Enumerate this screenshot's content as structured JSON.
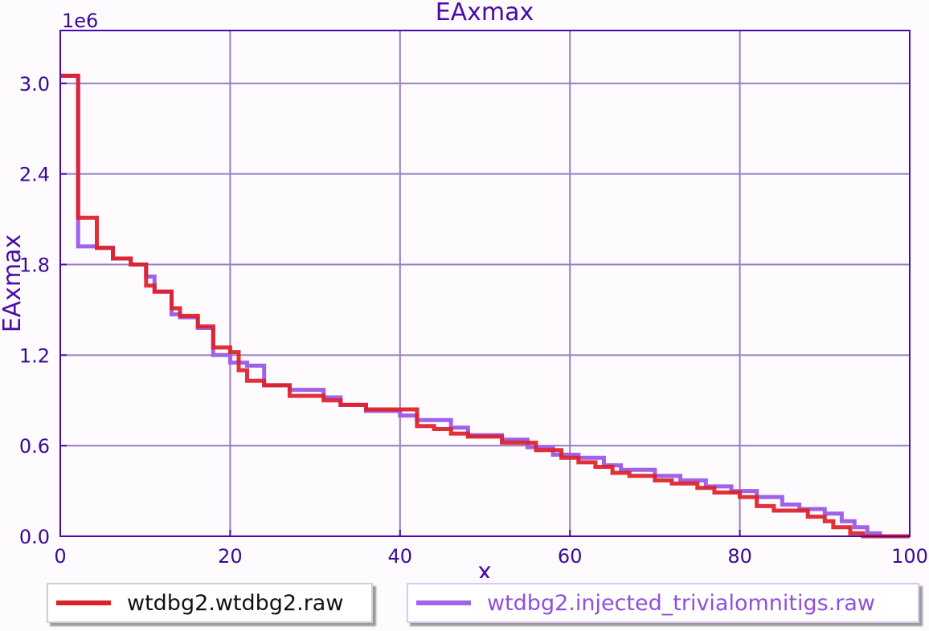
{
  "chart_data": {
    "type": "line",
    "title": "EAxmax",
    "xlabel": "x",
    "ylabel": "EAxmax",
    "y_offset_label": "1e6",
    "xlim": [
      0,
      100
    ],
    "ylim": [
      0,
      3.35
    ],
    "x_ticks": [
      "0",
      "20",
      "40",
      "60",
      "80",
      "100"
    ],
    "y_ticks": [
      "0.0",
      "0.6",
      "1.2",
      "1.8",
      "2.4",
      "3.0"
    ],
    "grid": true,
    "legend_position": "bottom",
    "series": [
      {
        "name": "wtdbg2.wtdbg2.raw",
        "color": "#dd2027",
        "step_points": [
          [
            0,
            3.05
          ],
          [
            2.1,
            3.05
          ],
          [
            2.1,
            2.11
          ],
          [
            4.3,
            2.11
          ],
          [
            4.3,
            1.91
          ],
          [
            6.2,
            1.91
          ],
          [
            6.2,
            1.84
          ],
          [
            8.3,
            1.84
          ],
          [
            8.3,
            1.8
          ],
          [
            10.1,
            1.8
          ],
          [
            10.1,
            1.66
          ],
          [
            11.1,
            1.66
          ],
          [
            11.1,
            1.62
          ],
          [
            13.1,
            1.62
          ],
          [
            13.1,
            1.51
          ],
          [
            14.1,
            1.51
          ],
          [
            14.1,
            1.46
          ],
          [
            16.2,
            1.46
          ],
          [
            16.2,
            1.39
          ],
          [
            18.0,
            1.39
          ],
          [
            18.0,
            1.25
          ],
          [
            20.0,
            1.25
          ],
          [
            20.0,
            1.22
          ],
          [
            21.0,
            1.22
          ],
          [
            21.0,
            1.1
          ],
          [
            22.0,
            1.1
          ],
          [
            22.0,
            1.03
          ],
          [
            24.0,
            1.03
          ],
          [
            24.0,
            1.0
          ],
          [
            27.0,
            1.0
          ],
          [
            27.0,
            0.93
          ],
          [
            31.0,
            0.93
          ],
          [
            31.0,
            0.9
          ],
          [
            33.0,
            0.9
          ],
          [
            33.0,
            0.87
          ],
          [
            36.0,
            0.87
          ],
          [
            36.0,
            0.84
          ],
          [
            42.0,
            0.84
          ],
          [
            42.0,
            0.73
          ],
          [
            44.0,
            0.73
          ],
          [
            44.0,
            0.71
          ],
          [
            46.0,
            0.71
          ],
          [
            46.0,
            0.68
          ],
          [
            48.0,
            0.68
          ],
          [
            48.0,
            0.66
          ],
          [
            52.0,
            0.66
          ],
          [
            52.0,
            0.62
          ],
          [
            56.0,
            0.62
          ],
          [
            56.0,
            0.57
          ],
          [
            59.0,
            0.57
          ],
          [
            59.0,
            0.52
          ],
          [
            61.0,
            0.52
          ],
          [
            61.0,
            0.49
          ],
          [
            63.0,
            0.49
          ],
          [
            63.0,
            0.46
          ],
          [
            65.0,
            0.46
          ],
          [
            65.0,
            0.42
          ],
          [
            67.0,
            0.42
          ],
          [
            67.0,
            0.4
          ],
          [
            70.0,
            0.4
          ],
          [
            70.0,
            0.37
          ],
          [
            72.0,
            0.37
          ],
          [
            72.0,
            0.35
          ],
          [
            75.0,
            0.35
          ],
          [
            75.0,
            0.32
          ],
          [
            77.0,
            0.32
          ],
          [
            77.0,
            0.29
          ],
          [
            80.0,
            0.29
          ],
          [
            80.0,
            0.26
          ],
          [
            82.0,
            0.26
          ],
          [
            82.0,
            0.2
          ],
          [
            84.0,
            0.2
          ],
          [
            84.0,
            0.17
          ],
          [
            88.0,
            0.17
          ],
          [
            88.0,
            0.13
          ],
          [
            90.0,
            0.13
          ],
          [
            90.0,
            0.1
          ],
          [
            91.0,
            0.1
          ],
          [
            91.0,
            0.06
          ],
          [
            93.0,
            0.06
          ],
          [
            93.0,
            0.02
          ],
          [
            94.5,
            0.02
          ],
          [
            94.5,
            0.0
          ],
          [
            100,
            0.0
          ]
        ]
      },
      {
        "name": "wtdbg2.injected_trivialomnitigs.raw",
        "color": "#9f62e8",
        "step_points": [
          [
            0,
            3.05
          ],
          [
            2.1,
            3.05
          ],
          [
            2.1,
            1.92
          ],
          [
            4.3,
            1.92
          ],
          [
            4.3,
            1.91
          ],
          [
            6.2,
            1.91
          ],
          [
            6.2,
            1.84
          ],
          [
            8.3,
            1.84
          ],
          [
            8.3,
            1.8
          ],
          [
            10.1,
            1.8
          ],
          [
            10.1,
            1.72
          ],
          [
            11.1,
            1.72
          ],
          [
            11.1,
            1.62
          ],
          [
            13.1,
            1.62
          ],
          [
            13.1,
            1.47
          ],
          [
            14.1,
            1.47
          ],
          [
            14.1,
            1.45
          ],
          [
            16.2,
            1.45
          ],
          [
            16.2,
            1.38
          ],
          [
            18.0,
            1.38
          ],
          [
            18.0,
            1.2
          ],
          [
            20.0,
            1.2
          ],
          [
            20.0,
            1.15
          ],
          [
            22.0,
            1.15
          ],
          [
            22.0,
            1.13
          ],
          [
            24.0,
            1.13
          ],
          [
            24.0,
            1.0
          ],
          [
            27.0,
            1.0
          ],
          [
            27.0,
            0.97
          ],
          [
            31.0,
            0.97
          ],
          [
            31.0,
            0.92
          ],
          [
            33.0,
            0.92
          ],
          [
            33.0,
            0.87
          ],
          [
            36.0,
            0.87
          ],
          [
            36.0,
            0.83
          ],
          [
            40.0,
            0.83
          ],
          [
            40.0,
            0.8
          ],
          [
            42.0,
            0.8
          ],
          [
            42.0,
            0.77
          ],
          [
            46.0,
            0.77
          ],
          [
            46.0,
            0.72
          ],
          [
            48.0,
            0.72
          ],
          [
            48.0,
            0.67
          ],
          [
            52.0,
            0.67
          ],
          [
            52.0,
            0.64
          ],
          [
            55.0,
            0.64
          ],
          [
            55.0,
            0.59
          ],
          [
            58.0,
            0.59
          ],
          [
            58.0,
            0.54
          ],
          [
            61.0,
            0.54
          ],
          [
            61.0,
            0.52
          ],
          [
            64.0,
            0.52
          ],
          [
            64.0,
            0.47
          ],
          [
            66.0,
            0.47
          ],
          [
            66.0,
            0.44
          ],
          [
            70.0,
            0.44
          ],
          [
            70.0,
            0.4
          ],
          [
            73.0,
            0.4
          ],
          [
            73.0,
            0.37
          ],
          [
            76.0,
            0.37
          ],
          [
            76.0,
            0.33
          ],
          [
            79.0,
            0.33
          ],
          [
            79.0,
            0.3
          ],
          [
            82.0,
            0.3
          ],
          [
            82.0,
            0.26
          ],
          [
            85.0,
            0.26
          ],
          [
            85.0,
            0.21
          ],
          [
            87.0,
            0.21
          ],
          [
            87.0,
            0.18
          ],
          [
            90.0,
            0.18
          ],
          [
            90.0,
            0.15
          ],
          [
            92.0,
            0.15
          ],
          [
            92.0,
            0.1
          ],
          [
            93.5,
            0.1
          ],
          [
            93.5,
            0.06
          ],
          [
            95.0,
            0.06
          ],
          [
            95.0,
            0.02
          ],
          [
            96.5,
            0.02
          ],
          [
            96.5,
            0.0
          ],
          [
            100,
            0.0
          ]
        ]
      }
    ]
  }
}
